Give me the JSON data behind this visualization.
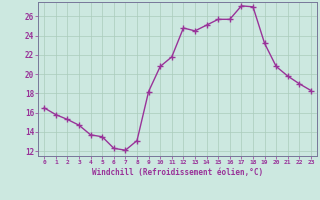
{
  "x": [
    0,
    1,
    2,
    3,
    4,
    5,
    6,
    7,
    8,
    9,
    10,
    11,
    12,
    13,
    14,
    15,
    16,
    17,
    18,
    19,
    20,
    21,
    22,
    23
  ],
  "y": [
    16.5,
    15.8,
    15.3,
    14.7,
    13.7,
    13.5,
    12.3,
    12.1,
    13.1,
    18.2,
    20.8,
    21.8,
    24.8,
    24.5,
    25.1,
    25.7,
    25.7,
    27.1,
    27.0,
    23.2,
    20.8,
    19.8,
    19.0,
    18.3
  ],
  "line_color": "#993399",
  "marker": "+",
  "marker_size": 4,
  "bg_color": "#cce8e0",
  "grid_color": "#aaccbb",
  "xlabel": "Windchill (Refroidissement éolien,°C)",
  "xlabel_color": "#993399",
  "tick_color": "#993399",
  "spine_color": "#777799",
  "ylim": [
    11.5,
    27.5
  ],
  "xlim": [
    -0.5,
    23.5
  ],
  "yticks": [
    12,
    14,
    16,
    18,
    20,
    22,
    24,
    26
  ],
  "xticks": [
    0,
    1,
    2,
    3,
    4,
    5,
    6,
    7,
    8,
    9,
    10,
    11,
    12,
    13,
    14,
    15,
    16,
    17,
    18,
    19,
    20,
    21,
    22,
    23
  ],
  "xtick_labels": [
    "0",
    "1",
    "2",
    "3",
    "4",
    "5",
    "6",
    "7",
    "8",
    "9",
    "10",
    "11",
    "12",
    "13",
    "14",
    "15",
    "16",
    "17",
    "18",
    "19",
    "20",
    "21",
    "22",
    "23"
  ],
  "linewidth": 1.0,
  "fig_width": 3.2,
  "fig_height": 2.0,
  "dpi": 100
}
